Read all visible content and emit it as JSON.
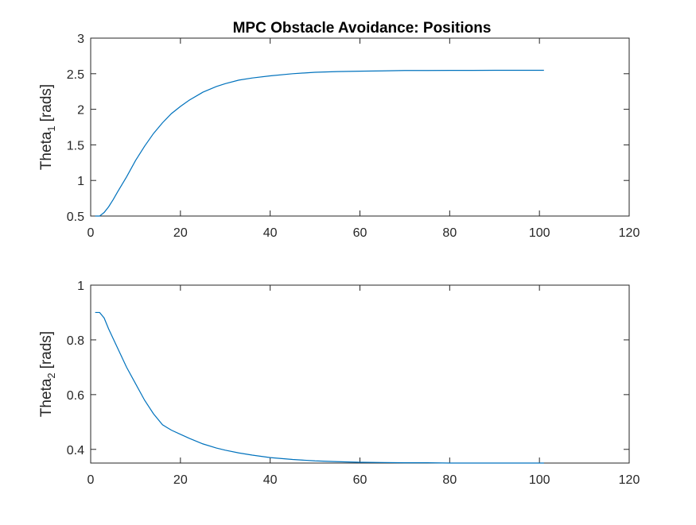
{
  "figure": {
    "title": "MPC Obstacle Avoidance: Positions"
  },
  "chart_data": [
    {
      "type": "line",
      "title": "MPC Obstacle Avoidance: Positions",
      "xlabel": "",
      "ylabel_main": "Theta",
      "ylabel_sub": "1",
      "ylabel_unit": "[rads]",
      "xlim": [
        0,
        120
      ],
      "ylim": [
        0.5,
        3
      ],
      "xticks": [
        0,
        20,
        40,
        60,
        80,
        100,
        120
      ],
      "xtick_labels": [
        "0",
        "20",
        "40",
        "60",
        "80",
        "100",
        "120"
      ],
      "yticks": [
        0.5,
        1,
        1.5,
        2,
        2.5,
        3
      ],
      "ytick_labels": [
        "0.5",
        "1",
        "1.5",
        "2",
        "2.5",
        "3"
      ],
      "grid": false,
      "line_color": "#0072BD",
      "series": [
        {
          "x": [
            1,
            2,
            3,
            4,
            5,
            6,
            8,
            10,
            12,
            14,
            16,
            18,
            20,
            22,
            25,
            28,
            30,
            33,
            36,
            40,
            45,
            50,
            55,
            60,
            65,
            70,
            75,
            80,
            85,
            90,
            95,
            101
          ],
          "values": [
            0.5,
            0.5,
            0.55,
            0.63,
            0.73,
            0.84,
            1.05,
            1.28,
            1.48,
            1.66,
            1.81,
            1.94,
            2.04,
            2.13,
            2.24,
            2.32,
            2.36,
            2.41,
            2.44,
            2.47,
            2.5,
            2.52,
            2.53,
            2.535,
            2.54,
            2.545,
            2.545,
            2.547,
            2.547,
            2.548,
            2.548,
            2.548
          ]
        }
      ]
    },
    {
      "type": "line",
      "title": "",
      "xlabel": "",
      "ylabel_main": "Theta",
      "ylabel_sub": "2",
      "ylabel_unit": "[rads]",
      "xlim": [
        0,
        120
      ],
      "ylim": [
        0.35,
        1
      ],
      "xticks": [
        0,
        20,
        40,
        60,
        80,
        100,
        120
      ],
      "xtick_labels": [
        "0",
        "20",
        "40",
        "60",
        "80",
        "100",
        "120"
      ],
      "yticks": [
        0.4,
        0.6,
        0.8,
        1
      ],
      "ytick_labels": [
        "0.4",
        "0.6",
        "0.8",
        "1"
      ],
      "grid": false,
      "line_color": "#0072BD",
      "series": [
        {
          "x": [
            1,
            2,
            3,
            4,
            6,
            8,
            10,
            12,
            14,
            16,
            17,
            18,
            20,
            22,
            25,
            28,
            30,
            33,
            36,
            40,
            45,
            50,
            55,
            60,
            65,
            70,
            75,
            80,
            85,
            90,
            95,
            101
          ],
          "values": [
            0.9,
            0.9,
            0.88,
            0.84,
            0.77,
            0.7,
            0.64,
            0.58,
            0.53,
            0.49,
            0.48,
            0.47,
            0.455,
            0.44,
            0.42,
            0.405,
            0.397,
            0.387,
            0.379,
            0.37,
            0.363,
            0.358,
            0.355,
            0.353,
            0.352,
            0.351,
            0.351,
            0.35,
            0.35,
            0.35,
            0.35,
            0.35
          ]
        }
      ]
    }
  ]
}
